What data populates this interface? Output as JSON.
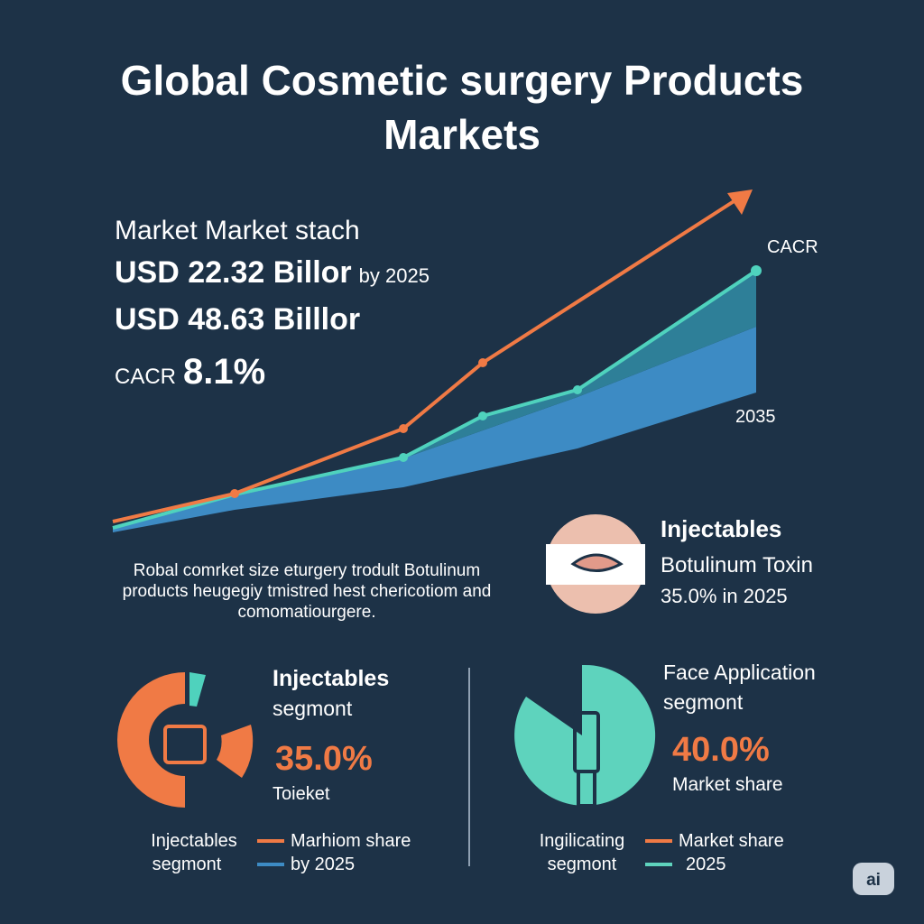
{
  "header": {
    "title_lines": [
      "Global Cosmetic surgery Products",
      "Markets"
    ]
  },
  "summary": {
    "heading": "Market Market stach",
    "value_2025": "USD 22.32 Billor",
    "value_2025_suffix": "by 2025",
    "value_2035": "USD 48.63 Billlor",
    "cagr_label": "CACR",
    "cagr_value": "8.1%"
  },
  "chart_labels": {
    "cagr": "CACR",
    "year": "2035"
  },
  "description": {
    "lines": [
      "Robal comrket size eturgery trodult Botulinum",
      "products heugegiy tmistred hest  chericotiom and",
      "comomatiourgere."
    ]
  },
  "highlight": {
    "title": "Injectables",
    "subtitle": "Botulinum Toxin",
    "note": "35.0% in 2025"
  },
  "segments": [
    {
      "title_lines": [
        "Injectables",
        "segmont"
      ],
      "value": "35.0%",
      "note": "Toieket",
      "legend_label_lines": [
        "Injectables",
        "segmont"
      ],
      "legend_items": [
        "Marhiom share",
        "by 2025"
      ]
    },
    {
      "title_lines": [
        "Face Application",
        "segmont"
      ],
      "value": "40.0%",
      "note": "Market share",
      "legend_label_lines": [
        "Ingilicating",
        "segmont"
      ],
      "legend_items": [
        "Market share",
        "2025"
      ]
    }
  ],
  "badge": "ai"
}
